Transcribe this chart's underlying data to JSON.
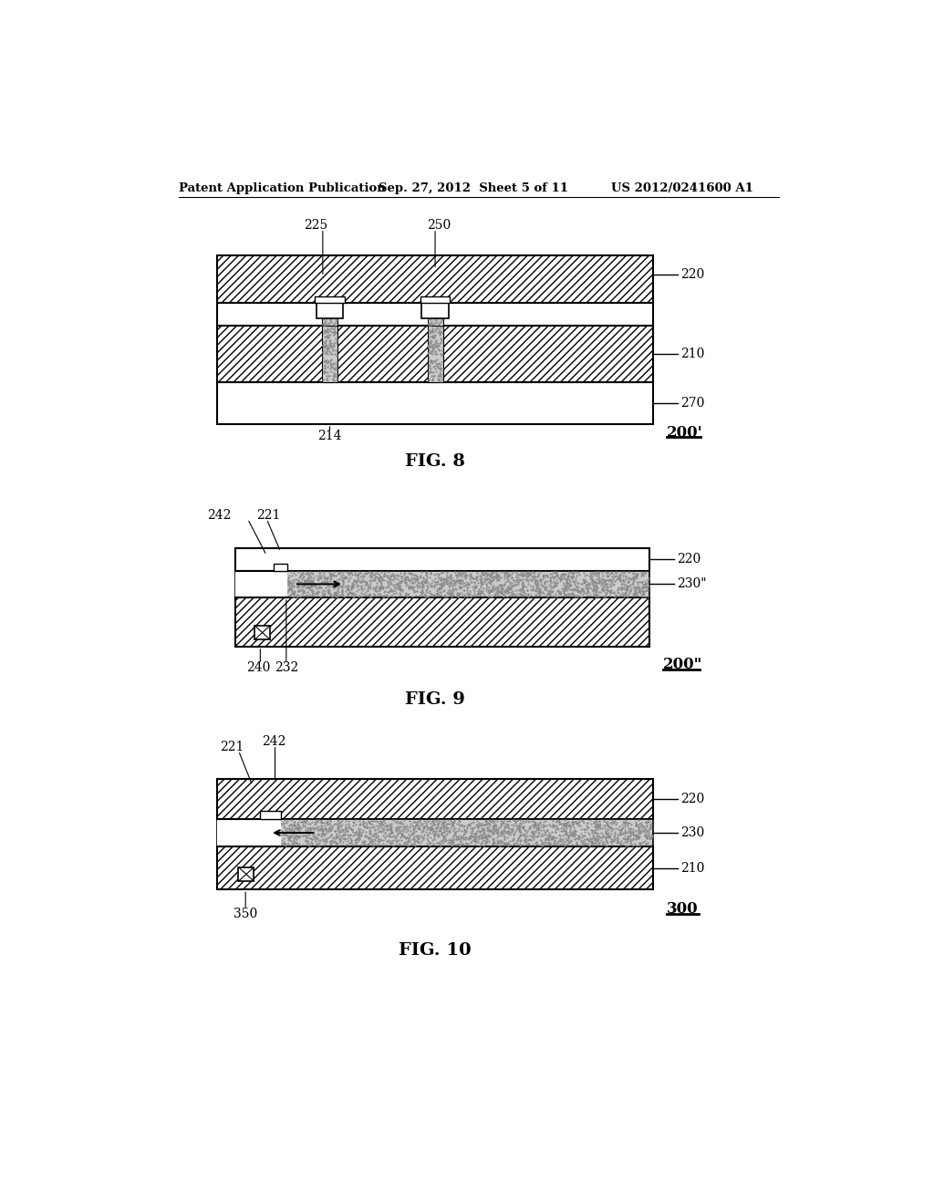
{
  "header_left": "Patent Application Publication",
  "header_mid": "Sep. 27, 2012  Sheet 5 of 11",
  "header_right": "US 2012/0241600 A1",
  "fig8_label": "FIG. 8",
  "fig9_label": "FIG. 9",
  "fig10_label": "FIG. 10",
  "bg_color": "#ffffff"
}
